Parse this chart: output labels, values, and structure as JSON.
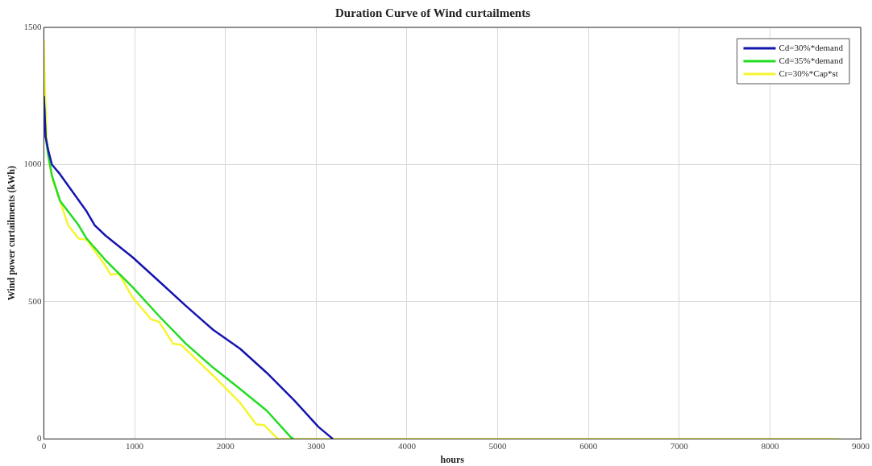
{
  "chart_data": {
    "type": "line",
    "title": "Duration Curve of Wind curtailments",
    "xlabel": "hours",
    "ylabel": "Wind power curtailments (kWh)",
    "xlim": [
      0,
      9000
    ],
    "xticks": [
      0,
      1000,
      2000,
      3000,
      4000,
      5000,
      6000,
      7000,
      8000,
      9000
    ],
    "ylim": [
      0,
      1500
    ],
    "yticks": [
      0,
      500,
      1000,
      1500
    ],
    "grid": true,
    "legend": "top right",
    "marker": "none",
    "line_style": "solid",
    "series": [
      {
        "name": "Cd=30%*demand",
        "color": "#1515b0",
        "x": [
          0,
          20,
          50,
          89,
          178,
          472,
          560,
          680,
          979,
          1272,
          1566,
          1868,
          2162,
          2456,
          2758,
          3025,
          3185
        ],
        "values": [
          1250,
          1100,
          1050,
          1000,
          965,
          829,
          779,
          741,
          662,
          574,
          485,
          397,
          329,
          241,
          141,
          44,
          0
        ]
      },
      {
        "name": "Cd=35%*demand",
        "color": "#22dd22",
        "x": [
          0,
          20,
          50,
          89,
          178,
          383,
          472,
          676,
          979,
          1272,
          1566,
          1868,
          2162,
          2456,
          2722,
          2750
        ],
        "values": [
          1250,
          1100,
          1030,
          960,
          868,
          779,
          730,
          653,
          553,
          447,
          347,
          259,
          182,
          103,
          6,
          0
        ]
      },
      {
        "name": "Cr=30%*Cap*st",
        "color": "#f5f530",
        "x": [
          0,
          10,
          30,
          56,
          100,
          178,
          267,
          383,
          472,
          676,
          738,
          827,
          979,
          1183,
          1272,
          1424,
          1512,
          1868,
          2162,
          2340,
          2429,
          2562,
          2580,
          8760
        ],
        "values": [
          1456,
          1300,
          1100,
          1015,
          940,
          868,
          779,
          730,
          726,
          632,
          598,
          603,
          515,
          436,
          426,
          347,
          343,
          230,
          132,
          53,
          50,
          6,
          0,
          0
        ]
      }
    ]
  }
}
